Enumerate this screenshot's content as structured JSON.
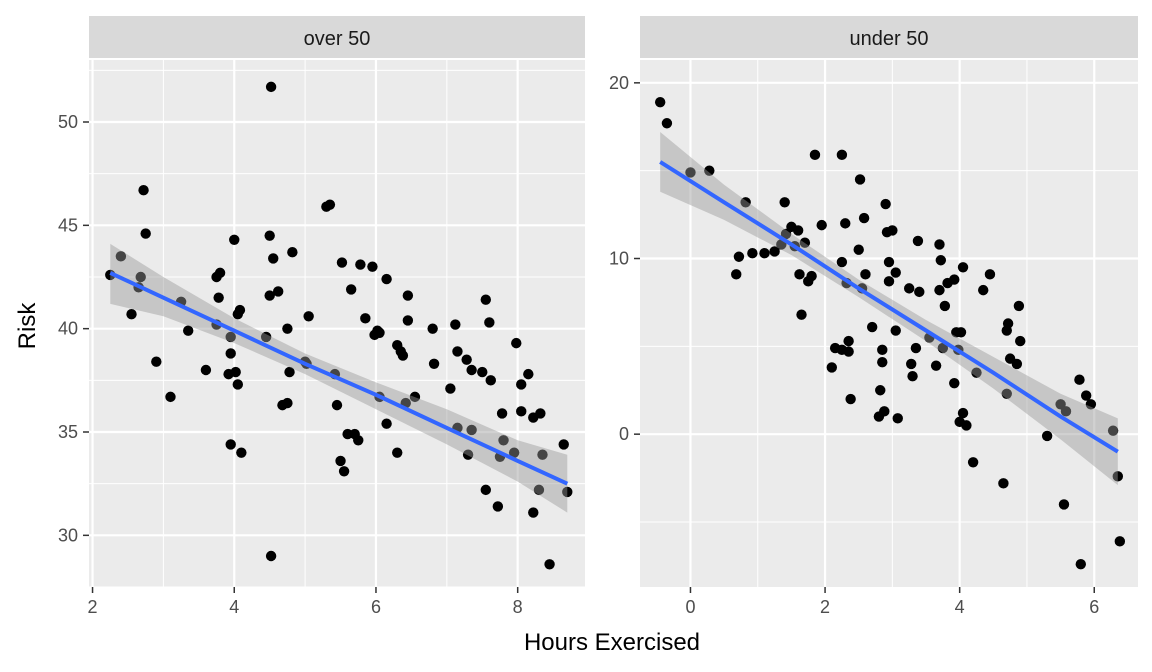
{
  "chart_data": {
    "type": "scatter",
    "xlabel": "Hours Exercised",
    "ylabel": "Risk",
    "colors": {
      "panel_bg": "#EBEBEB",
      "strip_bg": "#D9D9D9",
      "grid": "#FFFFFF",
      "point": "#000000",
      "fit_line": "#3366FF",
      "ribbon": "#999999"
    },
    "panels": [
      {
        "strip": "over 50",
        "xlim": [
          1.95,
          8.95
        ],
        "ylim": [
          27.5,
          53.0
        ],
        "x_ticks": [
          2,
          4,
          6,
          8
        ],
        "y_ticks": [
          30,
          35,
          40,
          45,
          50
        ],
        "x_tick_labels": [
          "2",
          "4",
          "6",
          "8"
        ],
        "y_tick_labels": [
          "30",
          "35",
          "40",
          "45",
          "50"
        ],
        "fit": {
          "x": [
            2.25,
            3.0,
            4.0,
            5.0,
            6.0,
            7.0,
            8.0,
            8.7
          ],
          "y": [
            42.7,
            41.5,
            39.9,
            38.3,
            36.8,
            35.2,
            33.6,
            32.5
          ],
          "lower": [
            41.2,
            40.6,
            39.3,
            37.8,
            36.1,
            34.4,
            32.6,
            31.1
          ],
          "upper": [
            44.1,
            42.5,
            40.5,
            38.8,
            37.4,
            36.1,
            34.6,
            33.9
          ]
        },
        "points": [
          [
            2.25,
            42.6
          ],
          [
            2.4,
            43.5
          ],
          [
            2.55,
            40.7
          ],
          [
            2.65,
            42.0
          ],
          [
            2.68,
            42.5
          ],
          [
            2.72,
            46.7
          ],
          [
            2.75,
            44.6
          ],
          [
            2.9,
            38.4
          ],
          [
            3.1,
            36.7
          ],
          [
            3.25,
            41.3
          ],
          [
            3.35,
            39.9
          ],
          [
            3.6,
            38.0
          ],
          [
            3.75,
            40.2
          ],
          [
            3.75,
            42.5
          ],
          [
            3.78,
            41.5
          ],
          [
            3.8,
            42.7
          ],
          [
            3.92,
            37.8
          ],
          [
            3.95,
            38.8
          ],
          [
            3.95,
            39.6
          ],
          [
            3.95,
            34.4
          ],
          [
            4.0,
            44.3
          ],
          [
            4.02,
            37.9
          ],
          [
            4.05,
            37.3
          ],
          [
            4.05,
            40.7
          ],
          [
            4.08,
            40.9
          ],
          [
            4.1,
            34.0
          ],
          [
            4.45,
            39.6
          ],
          [
            4.5,
            41.6
          ],
          [
            4.5,
            44.5
          ],
          [
            4.52,
            51.7
          ],
          [
            4.55,
            43.4
          ],
          [
            4.52,
            29.0
          ],
          [
            4.62,
            41.8
          ],
          [
            4.68,
            36.3
          ],
          [
            4.75,
            36.4
          ],
          [
            4.75,
            40.0
          ],
          [
            4.78,
            37.9
          ],
          [
            4.82,
            43.7
          ],
          [
            5.0,
            38.4
          ],
          [
            5.02,
            38.3
          ],
          [
            5.05,
            40.6
          ],
          [
            5.3,
            45.9
          ],
          [
            5.35,
            46.0
          ],
          [
            5.42,
            37.8
          ],
          [
            5.45,
            36.3
          ],
          [
            5.5,
            33.6
          ],
          [
            5.52,
            43.2
          ],
          [
            5.55,
            33.1
          ],
          [
            5.6,
            34.9
          ],
          [
            5.65,
            41.9
          ],
          [
            5.7,
            34.9
          ],
          [
            5.75,
            34.6
          ],
          [
            5.78,
            43.1
          ],
          [
            5.85,
            40.5
          ],
          [
            5.95,
            43.0
          ],
          [
            5.98,
            39.7
          ],
          [
            6.02,
            39.9
          ],
          [
            6.05,
            39.8
          ],
          [
            6.05,
            36.7
          ],
          [
            6.15,
            42.4
          ],
          [
            6.15,
            35.4
          ],
          [
            6.3,
            39.2
          ],
          [
            6.3,
            34.0
          ],
          [
            6.35,
            38.9
          ],
          [
            6.38,
            38.7
          ],
          [
            6.42,
            36.4
          ],
          [
            6.45,
            41.6
          ],
          [
            6.45,
            40.4
          ],
          [
            6.55,
            36.7
          ],
          [
            6.8,
            40.0
          ],
          [
            6.82,
            38.3
          ],
          [
            7.05,
            37.1
          ],
          [
            7.12,
            40.2
          ],
          [
            7.15,
            35.2
          ],
          [
            7.15,
            38.9
          ],
          [
            7.28,
            38.5
          ],
          [
            7.3,
            33.9
          ],
          [
            7.35,
            35.1
          ],
          [
            7.35,
            38.0
          ],
          [
            7.5,
            37.9
          ],
          [
            7.55,
            41.4
          ],
          [
            7.55,
            32.2
          ],
          [
            7.6,
            40.3
          ],
          [
            7.62,
            37.5
          ],
          [
            7.72,
            31.4
          ],
          [
            7.78,
            35.9
          ],
          [
            7.75,
            33.8
          ],
          [
            7.8,
            34.6
          ],
          [
            7.95,
            34.0
          ],
          [
            7.98,
            39.3
          ],
          [
            8.05,
            37.3
          ],
          [
            8.05,
            36.0
          ],
          [
            8.15,
            37.8
          ],
          [
            8.22,
            35.7
          ],
          [
            8.22,
            31.1
          ],
          [
            8.3,
            32.2
          ],
          [
            8.32,
            35.9
          ],
          [
            8.35,
            33.9
          ],
          [
            8.45,
            28.6
          ],
          [
            8.65,
            34.4
          ],
          [
            8.7,
            32.1
          ]
        ]
      },
      {
        "strip": "under 50",
        "xlim": [
          -0.75,
          6.65
        ],
        "ylim": [
          -8.7,
          21.3
        ],
        "x_ticks": [
          0,
          2,
          4,
          6
        ],
        "y_ticks": [
          0,
          10,
          20
        ],
        "x_tick_labels": [
          "0",
          "2",
          "4",
          "6"
        ],
        "y_tick_labels": [
          "0",
          "10",
          "20"
        ],
        "fit": {
          "x": [
            -0.45,
            0.5,
            1.5,
            2.5,
            3.5,
            4.5,
            5.5,
            6.35
          ],
          "y": [
            15.5,
            13.2,
            10.8,
            8.3,
            5.9,
            3.5,
            1.0,
            -1.0
          ],
          "lower": [
            13.8,
            12.2,
            10.2,
            7.8,
            5.3,
            2.6,
            -0.3,
            -2.9
          ],
          "upper": [
            17.2,
            14.2,
            11.4,
            8.8,
            6.5,
            4.4,
            2.3,
            0.9
          ]
        },
        "points": [
          [
            -0.45,
            18.9
          ],
          [
            -0.35,
            17.7
          ],
          [
            0.0,
            14.9
          ],
          [
            0.28,
            15.0
          ],
          [
            0.68,
            9.1
          ],
          [
            0.72,
            10.1
          ],
          [
            0.82,
            13.2
          ],
          [
            0.92,
            10.3
          ],
          [
            1.1,
            10.3
          ],
          [
            1.25,
            10.4
          ],
          [
            1.35,
            10.8
          ],
          [
            1.4,
            13.2
          ],
          [
            1.42,
            11.4
          ],
          [
            1.5,
            11.8
          ],
          [
            1.55,
            10.7
          ],
          [
            1.6,
            11.6
          ],
          [
            1.62,
            9.1
          ],
          [
            1.65,
            6.8
          ],
          [
            1.7,
            10.9
          ],
          [
            1.75,
            8.7
          ],
          [
            1.8,
            9.0
          ],
          [
            1.85,
            15.9
          ],
          [
            1.95,
            11.9
          ],
          [
            2.1,
            3.8
          ],
          [
            2.15,
            4.9
          ],
          [
            2.25,
            15.9
          ],
          [
            2.25,
            9.8
          ],
          [
            2.25,
            4.8
          ],
          [
            2.3,
            12.0
          ],
          [
            2.32,
            8.6
          ],
          [
            2.35,
            5.3
          ],
          [
            2.35,
            4.7
          ],
          [
            2.38,
            2.0
          ],
          [
            2.5,
            10.5
          ],
          [
            2.52,
            14.5
          ],
          [
            2.55,
            8.3
          ],
          [
            2.58,
            12.3
          ],
          [
            2.6,
            9.1
          ],
          [
            2.7,
            6.1
          ],
          [
            2.8,
            1.0
          ],
          [
            2.82,
            2.5
          ],
          [
            2.85,
            4.8
          ],
          [
            2.85,
            4.1
          ],
          [
            2.88,
            1.3
          ],
          [
            2.9,
            13.1
          ],
          [
            2.92,
            11.5
          ],
          [
            2.95,
            8.7
          ],
          [
            2.95,
            9.8
          ],
          [
            3.0,
            11.6
          ],
          [
            3.05,
            9.2
          ],
          [
            3.05,
            5.9
          ],
          [
            3.08,
            0.9
          ],
          [
            3.25,
            8.3
          ],
          [
            3.28,
            4.0
          ],
          [
            3.3,
            3.3
          ],
          [
            3.35,
            4.9
          ],
          [
            3.38,
            11.0
          ],
          [
            3.4,
            8.1
          ],
          [
            3.55,
            5.5
          ],
          [
            3.65,
            3.9
          ],
          [
            3.7,
            10.8
          ],
          [
            3.7,
            8.2
          ],
          [
            3.72,
            9.9
          ],
          [
            3.75,
            4.9
          ],
          [
            3.78,
            7.3
          ],
          [
            3.82,
            8.6
          ],
          [
            3.92,
            2.9
          ],
          [
            3.92,
            8.8
          ],
          [
            3.95,
            5.8
          ],
          [
            3.98,
            4.8
          ],
          [
            4.0,
            0.7
          ],
          [
            4.02,
            5.8
          ],
          [
            4.05,
            1.2
          ],
          [
            4.05,
            9.5
          ],
          [
            4.1,
            0.5
          ],
          [
            4.2,
            -1.6
          ],
          [
            4.25,
            3.5
          ],
          [
            4.35,
            8.2
          ],
          [
            4.45,
            9.1
          ],
          [
            4.65,
            -2.8
          ],
          [
            4.7,
            5.9
          ],
          [
            4.7,
            2.3
          ],
          [
            4.72,
            6.3
          ],
          [
            4.75,
            4.3
          ],
          [
            4.85,
            4.0
          ],
          [
            4.88,
            7.3
          ],
          [
            4.9,
            5.3
          ],
          [
            5.3,
            -0.1
          ],
          [
            5.5,
            1.7
          ],
          [
            5.55,
            -4.0
          ],
          [
            5.58,
            1.3
          ],
          [
            5.78,
            3.1
          ],
          [
            5.8,
            -7.4
          ],
          [
            5.88,
            2.2
          ],
          [
            5.95,
            1.7
          ],
          [
            6.28,
            0.2
          ],
          [
            6.35,
            -2.4
          ],
          [
            6.38,
            -6.1
          ]
        ]
      }
    ]
  }
}
